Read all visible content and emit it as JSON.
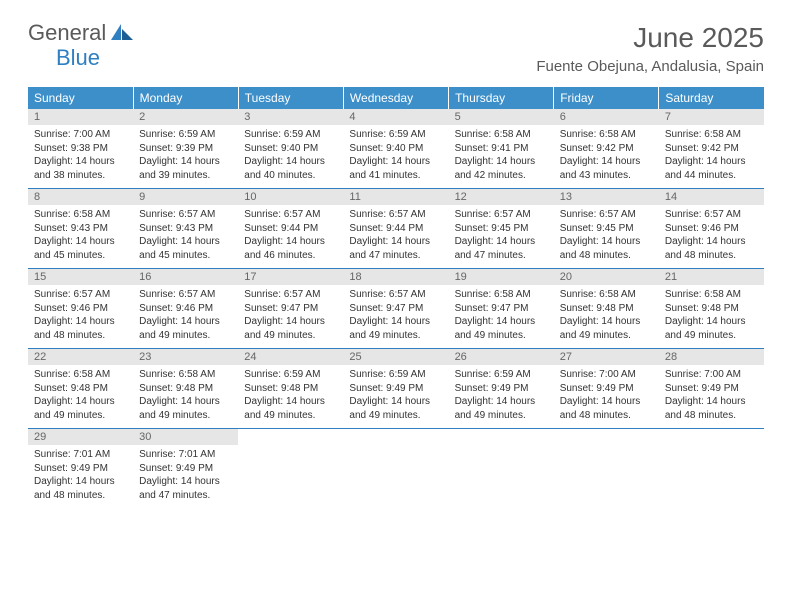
{
  "logo": {
    "text1": "General",
    "text2": "Blue"
  },
  "title": "June 2025",
  "subtitle": "Fuente Obejuna, Andalusia, Spain",
  "colors": {
    "header_bg": "#3d8fc9",
    "header_text": "#ffffff",
    "daynum_bg": "#e6e6e6",
    "daynum_text": "#666666",
    "border": "#2f7fc1",
    "logo_gray": "#5a5a5a",
    "logo_blue": "#2f7fc1",
    "body_text": "#333333"
  },
  "daynames": [
    "Sunday",
    "Monday",
    "Tuesday",
    "Wednesday",
    "Thursday",
    "Friday",
    "Saturday"
  ],
  "weeks": [
    [
      {
        "n": "1",
        "sr": "Sunrise: 7:00 AM",
        "ss": "Sunset: 9:38 PM",
        "d1": "Daylight: 14 hours",
        "d2": "and 38 minutes."
      },
      {
        "n": "2",
        "sr": "Sunrise: 6:59 AM",
        "ss": "Sunset: 9:39 PM",
        "d1": "Daylight: 14 hours",
        "d2": "and 39 minutes."
      },
      {
        "n": "3",
        "sr": "Sunrise: 6:59 AM",
        "ss": "Sunset: 9:40 PM",
        "d1": "Daylight: 14 hours",
        "d2": "and 40 minutes."
      },
      {
        "n": "4",
        "sr": "Sunrise: 6:59 AM",
        "ss": "Sunset: 9:40 PM",
        "d1": "Daylight: 14 hours",
        "d2": "and 41 minutes."
      },
      {
        "n": "5",
        "sr": "Sunrise: 6:58 AM",
        "ss": "Sunset: 9:41 PM",
        "d1": "Daylight: 14 hours",
        "d2": "and 42 minutes."
      },
      {
        "n": "6",
        "sr": "Sunrise: 6:58 AM",
        "ss": "Sunset: 9:42 PM",
        "d1": "Daylight: 14 hours",
        "d2": "and 43 minutes."
      },
      {
        "n": "7",
        "sr": "Sunrise: 6:58 AM",
        "ss": "Sunset: 9:42 PM",
        "d1": "Daylight: 14 hours",
        "d2": "and 44 minutes."
      }
    ],
    [
      {
        "n": "8",
        "sr": "Sunrise: 6:58 AM",
        "ss": "Sunset: 9:43 PM",
        "d1": "Daylight: 14 hours",
        "d2": "and 45 minutes."
      },
      {
        "n": "9",
        "sr": "Sunrise: 6:57 AM",
        "ss": "Sunset: 9:43 PM",
        "d1": "Daylight: 14 hours",
        "d2": "and 45 minutes."
      },
      {
        "n": "10",
        "sr": "Sunrise: 6:57 AM",
        "ss": "Sunset: 9:44 PM",
        "d1": "Daylight: 14 hours",
        "d2": "and 46 minutes."
      },
      {
        "n": "11",
        "sr": "Sunrise: 6:57 AM",
        "ss": "Sunset: 9:44 PM",
        "d1": "Daylight: 14 hours",
        "d2": "and 47 minutes."
      },
      {
        "n": "12",
        "sr": "Sunrise: 6:57 AM",
        "ss": "Sunset: 9:45 PM",
        "d1": "Daylight: 14 hours",
        "d2": "and 47 minutes."
      },
      {
        "n": "13",
        "sr": "Sunrise: 6:57 AM",
        "ss": "Sunset: 9:45 PM",
        "d1": "Daylight: 14 hours",
        "d2": "and 48 minutes."
      },
      {
        "n": "14",
        "sr": "Sunrise: 6:57 AM",
        "ss": "Sunset: 9:46 PM",
        "d1": "Daylight: 14 hours",
        "d2": "and 48 minutes."
      }
    ],
    [
      {
        "n": "15",
        "sr": "Sunrise: 6:57 AM",
        "ss": "Sunset: 9:46 PM",
        "d1": "Daylight: 14 hours",
        "d2": "and 48 minutes."
      },
      {
        "n": "16",
        "sr": "Sunrise: 6:57 AM",
        "ss": "Sunset: 9:46 PM",
        "d1": "Daylight: 14 hours",
        "d2": "and 49 minutes."
      },
      {
        "n": "17",
        "sr": "Sunrise: 6:57 AM",
        "ss": "Sunset: 9:47 PM",
        "d1": "Daylight: 14 hours",
        "d2": "and 49 minutes."
      },
      {
        "n": "18",
        "sr": "Sunrise: 6:57 AM",
        "ss": "Sunset: 9:47 PM",
        "d1": "Daylight: 14 hours",
        "d2": "and 49 minutes."
      },
      {
        "n": "19",
        "sr": "Sunrise: 6:58 AM",
        "ss": "Sunset: 9:47 PM",
        "d1": "Daylight: 14 hours",
        "d2": "and 49 minutes."
      },
      {
        "n": "20",
        "sr": "Sunrise: 6:58 AM",
        "ss": "Sunset: 9:48 PM",
        "d1": "Daylight: 14 hours",
        "d2": "and 49 minutes."
      },
      {
        "n": "21",
        "sr": "Sunrise: 6:58 AM",
        "ss": "Sunset: 9:48 PM",
        "d1": "Daylight: 14 hours",
        "d2": "and 49 minutes."
      }
    ],
    [
      {
        "n": "22",
        "sr": "Sunrise: 6:58 AM",
        "ss": "Sunset: 9:48 PM",
        "d1": "Daylight: 14 hours",
        "d2": "and 49 minutes."
      },
      {
        "n": "23",
        "sr": "Sunrise: 6:58 AM",
        "ss": "Sunset: 9:48 PM",
        "d1": "Daylight: 14 hours",
        "d2": "and 49 minutes."
      },
      {
        "n": "24",
        "sr": "Sunrise: 6:59 AM",
        "ss": "Sunset: 9:48 PM",
        "d1": "Daylight: 14 hours",
        "d2": "and 49 minutes."
      },
      {
        "n": "25",
        "sr": "Sunrise: 6:59 AM",
        "ss": "Sunset: 9:49 PM",
        "d1": "Daylight: 14 hours",
        "d2": "and 49 minutes."
      },
      {
        "n": "26",
        "sr": "Sunrise: 6:59 AM",
        "ss": "Sunset: 9:49 PM",
        "d1": "Daylight: 14 hours",
        "d2": "and 49 minutes."
      },
      {
        "n": "27",
        "sr": "Sunrise: 7:00 AM",
        "ss": "Sunset: 9:49 PM",
        "d1": "Daylight: 14 hours",
        "d2": "and 48 minutes."
      },
      {
        "n": "28",
        "sr": "Sunrise: 7:00 AM",
        "ss": "Sunset: 9:49 PM",
        "d1": "Daylight: 14 hours",
        "d2": "and 48 minutes."
      }
    ],
    [
      {
        "n": "29",
        "sr": "Sunrise: 7:01 AM",
        "ss": "Sunset: 9:49 PM",
        "d1": "Daylight: 14 hours",
        "d2": "and 48 minutes."
      },
      {
        "n": "30",
        "sr": "Sunrise: 7:01 AM",
        "ss": "Sunset: 9:49 PM",
        "d1": "Daylight: 14 hours",
        "d2": "and 47 minutes."
      },
      {
        "empty": true
      },
      {
        "empty": true
      },
      {
        "empty": true
      },
      {
        "empty": true
      },
      {
        "empty": true
      }
    ]
  ]
}
